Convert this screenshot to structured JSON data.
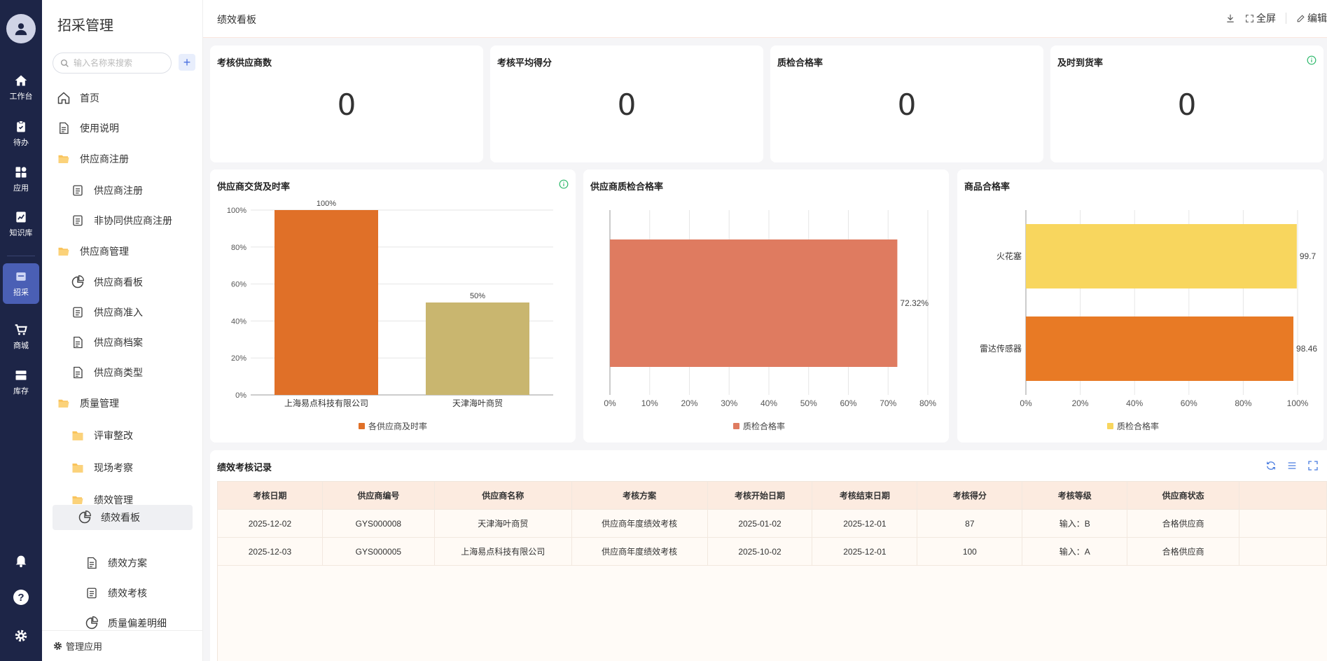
{
  "rail": {
    "items": [
      {
        "label": "工作台",
        "icon": "home-icon"
      },
      {
        "label": "待办",
        "icon": "clipboard-icon"
      },
      {
        "label": "应用",
        "icon": "apps-icon"
      },
      {
        "label": "知识库",
        "icon": "knowledge-icon"
      },
      {
        "label": "招采",
        "icon": "procurement-icon",
        "active": true
      },
      {
        "label": "商城",
        "icon": "cart-icon"
      },
      {
        "label": "库存",
        "icon": "inventory-icon"
      }
    ]
  },
  "sidenav": {
    "title": "招采管理",
    "search_placeholder": "输入名称来搜索",
    "add_label": "+",
    "items": [
      {
        "label": "首页",
        "icon": "home-outline-icon"
      },
      {
        "label": "使用说明",
        "icon": "document-icon"
      },
      {
        "label": "供应商注册",
        "icon": "folder-open-icon"
      },
      {
        "label": "供应商注册",
        "icon": "form-icon"
      },
      {
        "label": "非协同供应商注册",
        "icon": "form-icon"
      },
      {
        "label": "供应商管理",
        "icon": "folder-open-icon"
      },
      {
        "label": "供应商看板",
        "icon": "pie-chart-icon"
      },
      {
        "label": "供应商准入",
        "icon": "form-icon"
      },
      {
        "label": "供应商档案",
        "icon": "document-icon"
      },
      {
        "label": "供应商类型",
        "icon": "document-icon"
      },
      {
        "label": "质量管理",
        "icon": "folder-open-icon"
      },
      {
        "label": "评审整改",
        "icon": "folder-icon"
      },
      {
        "label": "现场考察",
        "icon": "folder-icon"
      },
      {
        "label": "绩效管理",
        "icon": "folder-open-icon"
      },
      {
        "label": "绩效看板",
        "icon": "pie-chart-icon",
        "active": true
      },
      {
        "label": "绩效方案",
        "icon": "document-icon"
      },
      {
        "label": "绩效考核",
        "icon": "form-icon"
      },
      {
        "label": "质量偏差明细",
        "icon": "pie-chart-icon"
      }
    ],
    "bottom_label": "管理应用"
  },
  "topbar": {
    "breadcrumb": "绩效看板",
    "download_label": "",
    "fullscreen_label": "全屏",
    "edit_label": "编辑"
  },
  "stats": [
    {
      "title": "考核供应商数",
      "value": "0"
    },
    {
      "title": "考核平均得分",
      "value": "0"
    },
    {
      "title": "质检合格率",
      "value": "0"
    },
    {
      "title": "及时到货率",
      "value": "0"
    }
  ],
  "chart_data": [
    {
      "type": "bar",
      "title": "供应商交货及时率",
      "categories": [
        "上海易点科技有限公司",
        "天津海叶商贸"
      ],
      "series": [
        {
          "name": "各供应商及时率",
          "values": [
            100,
            50
          ]
        }
      ],
      "data_labels": [
        "100%",
        "50%"
      ],
      "y_ticks": [
        "0%",
        "20%",
        "40%",
        "60%",
        "80%",
        "100%"
      ],
      "ylim": [
        0,
        100
      ],
      "colors": [
        "#e07028",
        "#c9b66f"
      ],
      "legend": "bottom",
      "grid": true
    },
    {
      "type": "bar",
      "orientation": "horizontal",
      "title": "供应商质检合格率",
      "categories": [
        ""
      ],
      "series": [
        {
          "name": "质检合格率",
          "values": [
            72.32
          ]
        }
      ],
      "data_labels": [
        "72.32%"
      ],
      "x_ticks": [
        "0%",
        "10%",
        "20%",
        "30%",
        "40%",
        "50%",
        "60%",
        "70%",
        "80%"
      ],
      "xlim": [
        0,
        80
      ],
      "colors": [
        "#df7b60"
      ],
      "legend": "bottom",
      "grid": true
    },
    {
      "type": "bar",
      "orientation": "horizontal",
      "title": "商品合格率",
      "categories": [
        "火花塞",
        "雷达传感器"
      ],
      "series": [
        {
          "name": "质检合格率",
          "values": [
            99.7,
            98.46
          ]
        }
      ],
      "data_labels": [
        "99.7",
        "98.46"
      ],
      "x_ticks": [
        "0%",
        "20%",
        "40%",
        "60%",
        "80%",
        "100%"
      ],
      "xlim": [
        0,
        100
      ],
      "colors": [
        "#f8d65e",
        "#e87a25"
      ],
      "legend_color": "#f8d65e",
      "legend": "bottom",
      "grid": true
    }
  ],
  "records": {
    "title": "绩效考核记录",
    "columns": [
      "考核日期",
      "供应商编号",
      "供应商名称",
      "考核方案",
      "考核开始日期",
      "考核结束日期",
      "考核得分",
      "考核等级",
      "供应商状态"
    ],
    "rows": [
      [
        "2025-12-02",
        "GYS000008",
        "天津海叶商贸",
        "供应商年度绩效考核",
        "2025-01-02",
        "2025-12-01",
        "87",
        "输入：B",
        "合格供应商"
      ],
      [
        "2025-12-03",
        "GYS000005",
        "上海易点科技有限公司",
        "供应商年度绩效考核",
        "2025-10-02",
        "2025-12-01",
        "100",
        "输入：A",
        "合格供应商"
      ]
    ]
  }
}
